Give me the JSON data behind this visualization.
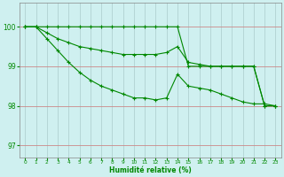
{
  "xlabel": "Humidité relative (%)",
  "background_color": "#cff0f0",
  "line_color": "#008800",
  "grid_color_h": "#cc8888",
  "grid_color_v": "#aacccc",
  "xlim": [
    -0.5,
    23.5
  ],
  "ylim": [
    96.7,
    100.6
  ],
  "yticks": [
    97,
    98,
    99,
    100
  ],
  "xticks": [
    0,
    1,
    2,
    3,
    4,
    5,
    6,
    7,
    8,
    9,
    10,
    11,
    12,
    13,
    14,
    15,
    16,
    17,
    18,
    19,
    20,
    21,
    22,
    23
  ],
  "series": [
    [
      100,
      100,
      100,
      100,
      100,
      100,
      100,
      100,
      100,
      100,
      100,
      100,
      100,
      100,
      100,
      99,
      99,
      99,
      99,
      99,
      99,
      99,
      98,
      98
    ],
    [
      100,
      100,
      99.85,
      99.7,
      99.6,
      99.5,
      99.45,
      99.4,
      99.35,
      99.3,
      99.3,
      99.3,
      99.3,
      99.35,
      99.5,
      99.1,
      99.05,
      99.0,
      99.0,
      99.0,
      99.0,
      99.0,
      98,
      98
    ],
    [
      100,
      100,
      99.7,
      99.4,
      99.1,
      98.85,
      98.65,
      98.5,
      98.4,
      98.3,
      98.2,
      98.2,
      98.15,
      98.2,
      98.8,
      98.5,
      98.45,
      98.4,
      98.3,
      98.2,
      98.1,
      98.05,
      98.05,
      98.0
    ]
  ]
}
